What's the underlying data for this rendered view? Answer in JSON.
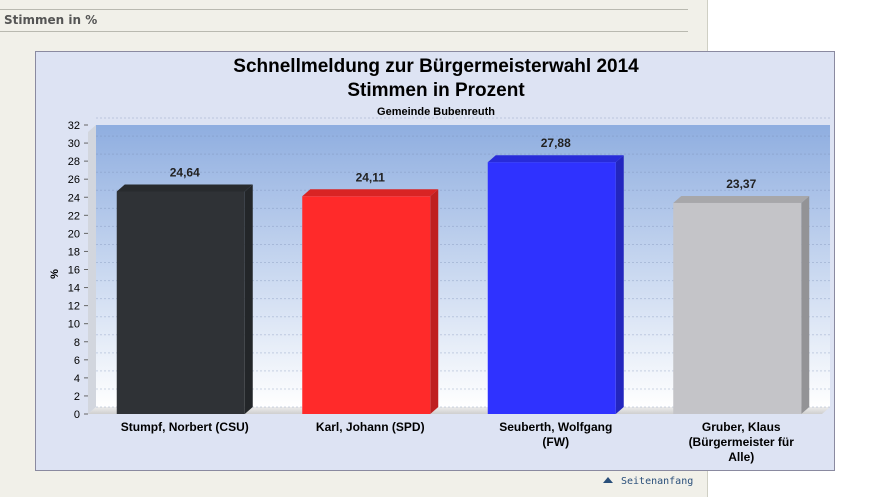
{
  "section": {
    "heading": "Stimmen in %"
  },
  "footer": {
    "top_link": "Seitenanfang"
  },
  "chart_data": {
    "type": "bar",
    "title": "Schnellmeldung zur Bürgermeisterwahl 2014",
    "subtitle": "Stimmen in Prozent",
    "caption": "Gemeinde Bubenreuth",
    "ylabel": "%",
    "xlabel": "",
    "ylim": [
      0,
      32
    ],
    "yticks": [
      "0",
      "2",
      "4",
      "6",
      "8",
      "10",
      "12",
      "14",
      "16",
      "18",
      "20",
      "22",
      "24",
      "26",
      "28",
      "30",
      "32"
    ],
    "categories": [
      [
        "Stumpf, Norbert (CSU)"
      ],
      [
        "Karl, Johann (SPD)"
      ],
      [
        "Seuberth, Wolfgang",
        "(FW)"
      ],
      [
        "Gruber, Klaus",
        "(Bürgermeister für",
        "Alle)"
      ]
    ],
    "values": [
      24.64,
      24.11,
      27.88,
      23.37
    ],
    "value_labels": [
      "24,64",
      "24,11",
      "27,88",
      "23,37"
    ],
    "colors": [
      "#2f3236",
      "#ff2a2a",
      "#2f32ff",
      "#c4c4c8"
    ],
    "grid": true,
    "legend": "none"
  }
}
